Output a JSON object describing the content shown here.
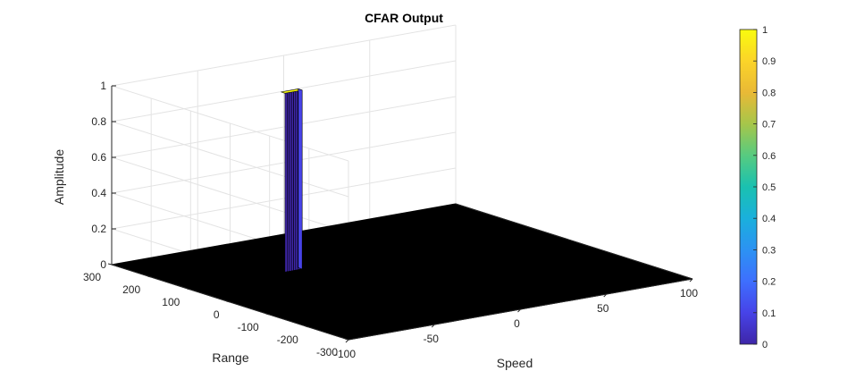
{
  "chart_data": {
    "type": "surface",
    "title": "CFAR Output",
    "xlabel": "Speed",
    "ylabel": "Range",
    "zlabel": "Amplitude",
    "xlim": [
      -100,
      100
    ],
    "ylim": [
      -300,
      300
    ],
    "zlim": [
      0,
      1
    ],
    "x_ticks": [
      "-100",
      "-50",
      "0",
      "50",
      "100"
    ],
    "y_ticks": [
      "-300",
      "-200",
      "-100",
      "0",
      "100",
      "200",
      "300"
    ],
    "z_ticks": [
      "0",
      "0.2",
      "0.4",
      "0.6",
      "0.8",
      "1"
    ],
    "grid": true,
    "floor_value": 0,
    "peak": {
      "speed_range": [
        -44,
        -34
      ],
      "range_range": [
        105,
        115
      ],
      "amplitude": 1
    },
    "colormap": "parula",
    "colorbar": {
      "ticks": [
        "0",
        "0.1",
        "0.2",
        "0.3",
        "0.4",
        "0.5",
        "0.6",
        "0.7",
        "0.8",
        "0.9",
        "1"
      ],
      "colors": [
        "#3e26a8",
        "#4743e8",
        "#3e6ffe",
        "#2c92f3",
        "#1ab0dc",
        "#1ac1b0",
        "#57cb80",
        "#a6c64a",
        "#e9b936",
        "#fbd429",
        "#f9fb0e"
      ]
    }
  }
}
